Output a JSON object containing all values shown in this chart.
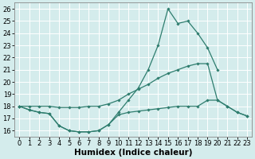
{
  "xlabel": "Humidex (Indice chaleur)",
  "x": [
    0,
    1,
    2,
    3,
    4,
    5,
    6,
    7,
    8,
    9,
    10,
    11,
    12,
    13,
    14,
    15,
    16,
    17,
    18,
    19,
    20,
    21,
    22,
    23
  ],
  "line_spike": [
    18.0,
    17.7,
    17.5,
    17.4,
    16.4,
    16.0,
    15.9,
    15.9,
    16.0,
    16.5,
    17.5,
    18.5,
    19.5,
    21.0,
    23.0,
    26.0,
    24.8,
    25.0,
    24.0,
    22.8,
    21.0,
    null,
    null,
    null
  ],
  "line_mid": [
    18.0,
    18.0,
    18.0,
    18.0,
    17.9,
    17.9,
    17.9,
    18.0,
    18.0,
    18.2,
    18.5,
    19.0,
    19.4,
    19.8,
    20.3,
    20.7,
    21.0,
    21.3,
    21.5,
    21.5,
    18.5,
    18.0,
    17.5,
    17.2
  ],
  "line_low": [
    18.0,
    17.7,
    17.5,
    17.4,
    16.4,
    16.0,
    15.9,
    15.9,
    16.0,
    16.5,
    17.3,
    17.5,
    17.6,
    17.7,
    17.8,
    17.9,
    18.0,
    18.0,
    18.0,
    18.5,
    18.5,
    18.0,
    17.5,
    17.2
  ],
  "line_color": "#2e7d6e",
  "bg_color": "#d4ecec",
  "grid_color": "#ffffff",
  "ylim": [
    15.5,
    26.5
  ],
  "xlim": [
    -0.5,
    23.5
  ],
  "yticks": [
    16,
    17,
    18,
    19,
    20,
    21,
    22,
    23,
    24,
    25,
    26
  ],
  "xticks": [
    0,
    1,
    2,
    3,
    4,
    5,
    6,
    7,
    8,
    9,
    10,
    11,
    12,
    13,
    14,
    15,
    16,
    17,
    18,
    19,
    20,
    21,
    22,
    23
  ],
  "marker": "D",
  "marker_size": 1.8,
  "line_width": 0.9,
  "tick_font_size": 6.0,
  "xlabel_font_size": 7.5
}
